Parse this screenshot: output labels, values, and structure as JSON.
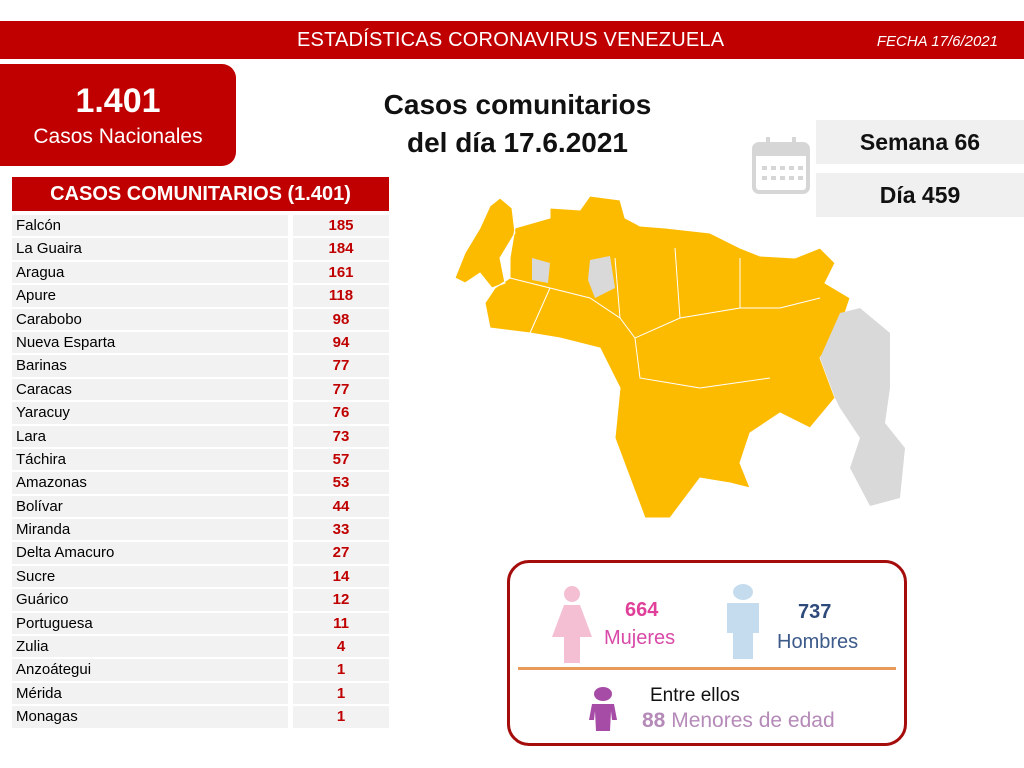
{
  "header": {
    "title": "ESTADÍSTICAS CORONAVIRUS VENEZUELA",
    "date": "FECHA 17/6/2021"
  },
  "national": {
    "value": "1.401",
    "label": "Casos Nacionales"
  },
  "main_title": {
    "line1": "Casos comunitarios",
    "line2": "del día 17.6.2021"
  },
  "week": "Semana 66",
  "day": "Día 459",
  "table": {
    "header": "CASOS COMUNITARIOS (1.401)",
    "rows": [
      {
        "state": "Falcón",
        "cases": "185"
      },
      {
        "state": "La Guaira",
        "cases": "184"
      },
      {
        "state": "Aragua",
        "cases": "161"
      },
      {
        "state": "Apure",
        "cases": "118"
      },
      {
        "state": "Carabobo",
        "cases": "98"
      },
      {
        "state": "Nueva Esparta",
        "cases": "94"
      },
      {
        "state": "Barinas",
        "cases": "77"
      },
      {
        "state": "Caracas",
        "cases": "77"
      },
      {
        "state": "Yaracuy",
        "cases": "76"
      },
      {
        "state": "Lara",
        "cases": "73"
      },
      {
        "state": "Táchira",
        "cases": "57"
      },
      {
        "state": "Amazonas",
        "cases": "53"
      },
      {
        "state": "Bolívar",
        "cases": "44"
      },
      {
        "state": "Miranda",
        "cases": "33"
      },
      {
        "state": "Delta Amacuro",
        "cases": "27"
      },
      {
        "state": "Sucre",
        "cases": "14"
      },
      {
        "state": "Guárico",
        "cases": "12"
      },
      {
        "state": "Portuguesa",
        "cases": "11"
      },
      {
        "state": "Zulia",
        "cases": "4"
      },
      {
        "state": "Anzoátegui",
        "cases": "1"
      },
      {
        "state": "Mérida",
        "cases": "1"
      },
      {
        "state": "Monagas",
        "cases": "1"
      }
    ]
  },
  "gender": {
    "women_count": "664",
    "women_label": "Mujeres",
    "men_count": "737",
    "men_label": "Hombres",
    "minors_intro": "Entre ellos",
    "minors_count": "88",
    "minors_label": "Menores de edad"
  },
  "colors": {
    "brand": "#c00000",
    "map_cases": "#fdbb00",
    "map_none": "#d9d9d9",
    "women": "#e0409a",
    "men": "#2e4a7a",
    "minors": "#a64ca6"
  }
}
